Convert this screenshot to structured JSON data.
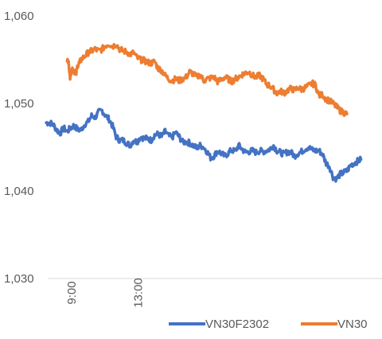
{
  "chart_data": {
    "type": "line",
    "title": "",
    "xlabel": "",
    "ylabel": "",
    "ylim": [
      1030,
      1060
    ],
    "yticks": [
      1030,
      1040,
      1050,
      1060
    ],
    "ytick_labels": [
      "1,030",
      "1,040",
      "1,050",
      "1,060"
    ],
    "xticks": [
      "9:00",
      "13:00"
    ],
    "grid": "horizontal gridline at baseline only",
    "legend_position": "bottom",
    "series": [
      {
        "name": "VN30F2302",
        "color": "#4472C4",
        "x_index_range": [
          0,
          1000
        ],
        "points": [
          [
            0,
            1047.8
          ],
          [
            10,
            1047.8
          ],
          [
            20,
            1047.6
          ],
          [
            30,
            1047.0
          ],
          [
            40,
            1046.6
          ],
          [
            50,
            1047.2
          ],
          [
            60,
            1046.8
          ],
          [
            70,
            1047.2
          ],
          [
            80,
            1047.5
          ],
          [
            90,
            1047.0
          ],
          [
            100,
            1047.0
          ],
          [
            110,
            1047.6
          ],
          [
            120,
            1047.9
          ],
          [
            130,
            1048.6
          ],
          [
            140,
            1048.4
          ],
          [
            150,
            1049.0
          ],
          [
            160,
            1049.2
          ],
          [
            170,
            1048.6
          ],
          [
            180,
            1048.2
          ],
          [
            190,
            1047.4
          ],
          [
            200,
            1046.2
          ],
          [
            210,
            1045.8
          ],
          [
            220,
            1045.8
          ],
          [
            230,
            1045.5
          ],
          [
            240,
            1045.2
          ],
          [
            250,
            1045.8
          ],
          [
            260,
            1045.6
          ],
          [
            270,
            1046.2
          ],
          [
            280,
            1046.0
          ],
          [
            290,
            1046.0
          ],
          [
            300,
            1045.8
          ],
          [
            310,
            1046.4
          ],
          [
            320,
            1046.5
          ],
          [
            330,
            1046.2
          ],
          [
            340,
            1046.8
          ],
          [
            350,
            1046.3
          ],
          [
            360,
            1046.1
          ],
          [
            370,
            1046.7
          ],
          [
            380,
            1046.2
          ],
          [
            390,
            1045.6
          ],
          [
            400,
            1045.6
          ],
          [
            410,
            1045.5
          ],
          [
            420,
            1045.2
          ],
          [
            430,
            1044.9
          ],
          [
            440,
            1045.2
          ],
          [
            450,
            1045.0
          ],
          [
            460,
            1044.5
          ],
          [
            470,
            1043.8
          ],
          [
            480,
            1044.0
          ],
          [
            490,
            1044.6
          ],
          [
            500,
            1044.3
          ],
          [
            510,
            1044.0
          ],
          [
            520,
            1044.3
          ],
          [
            530,
            1044.7
          ],
          [
            540,
            1044.5
          ],
          [
            550,
            1045.2
          ],
          [
            560,
            1044.8
          ],
          [
            570,
            1044.4
          ],
          [
            580,
            1044.5
          ],
          [
            590,
            1044.6
          ],
          [
            600,
            1044.4
          ],
          [
            610,
            1044.6
          ],
          [
            620,
            1044.5
          ],
          [
            630,
            1044.6
          ],
          [
            640,
            1044.8
          ],
          [
            650,
            1045.2
          ],
          [
            660,
            1044.6
          ],
          [
            670,
            1044.4
          ],
          [
            680,
            1044.2
          ],
          [
            690,
            1044.5
          ],
          [
            700,
            1044.4
          ],
          [
            710,
            1044.0
          ],
          [
            720,
            1044.3
          ],
          [
            730,
            1044.5
          ],
          [
            740,
            1044.8
          ],
          [
            750,
            1045.0
          ],
          [
            760,
            1044.7
          ],
          [
            770,
            1044.6
          ],
          [
            780,
            1044.6
          ],
          [
            790,
            1044.2
          ],
          [
            800,
            1043.2
          ],
          [
            810,
            1042.8
          ],
          [
            820,
            1041.6
          ],
          [
            830,
            1041.4
          ],
          [
            840,
            1041.9
          ],
          [
            850,
            1042.1
          ],
          [
            860,
            1042.3
          ],
          [
            870,
            1042.9
          ],
          [
            880,
            1043.2
          ],
          [
            890,
            1043.4
          ],
          [
            900,
            1043.6
          ]
        ]
      },
      {
        "name": "VN30",
        "color": "#ED7D31",
        "x_index_range": [
          0,
          1000
        ],
        "points": [
          [
            60,
            1055.0
          ],
          [
            65,
            1054.5
          ],
          [
            68,
            1053.0
          ],
          [
            70,
            1053.5
          ],
          [
            75,
            1054.0
          ],
          [
            80,
            1053.8
          ],
          [
            85,
            1053.2
          ],
          [
            90,
            1054.4
          ],
          [
            95,
            1054.6
          ],
          [
            100,
            1055.0
          ],
          [
            110,
            1055.4
          ],
          [
            120,
            1055.8
          ],
          [
            130,
            1056.0
          ],
          [
            140,
            1056.2
          ],
          [
            150,
            1056.0
          ],
          [
            160,
            1056.2
          ],
          [
            170,
            1056.6
          ],
          [
            180,
            1056.8
          ],
          [
            190,
            1056.5
          ],
          [
            200,
            1056.8
          ],
          [
            210,
            1056.2
          ],
          [
            220,
            1056.0
          ],
          [
            230,
            1055.9
          ],
          [
            240,
            1055.6
          ],
          [
            250,
            1055.8
          ],
          [
            260,
            1055.2
          ],
          [
            270,
            1055.0
          ],
          [
            280,
            1054.9
          ],
          [
            290,
            1054.7
          ],
          [
            300,
            1054.6
          ],
          [
            310,
            1054.8
          ],
          [
            320,
            1054.0
          ],
          [
            330,
            1053.8
          ],
          [
            340,
            1053.2
          ],
          [
            350,
            1052.8
          ],
          [
            360,
            1052.6
          ],
          [
            370,
            1052.8
          ],
          [
            380,
            1052.6
          ],
          [
            390,
            1052.8
          ],
          [
            400,
            1053.0
          ],
          [
            410,
            1053.6
          ],
          [
            420,
            1053.4
          ],
          [
            430,
            1053.0
          ],
          [
            440,
            1053.3
          ],
          [
            450,
            1052.6
          ],
          [
            460,
            1052.8
          ],
          [
            470,
            1052.9
          ],
          [
            480,
            1053.0
          ],
          [
            490,
            1052.5
          ],
          [
            500,
            1052.7
          ],
          [
            510,
            1053.0
          ],
          [
            520,
            1052.8
          ],
          [
            530,
            1052.5
          ],
          [
            540,
            1052.8
          ],
          [
            550,
            1053.0
          ],
          [
            560,
            1053.3
          ],
          [
            570,
            1053.5
          ],
          [
            580,
            1053.6
          ],
          [
            590,
            1053.2
          ],
          [
            600,
            1053.0
          ],
          [
            610,
            1053.2
          ],
          [
            620,
            1052.8
          ],
          [
            630,
            1052.2
          ],
          [
            640,
            1052.0
          ],
          [
            650,
            1051.6
          ],
          [
            660,
            1051.2
          ],
          [
            670,
            1051.4
          ],
          [
            680,
            1051.2
          ],
          [
            690,
            1051.5
          ],
          [
            700,
            1051.7
          ],
          [
            710,
            1051.5
          ],
          [
            720,
            1051.8
          ],
          [
            730,
            1051.6
          ],
          [
            740,
            1051.8
          ],
          [
            750,
            1052.0
          ],
          [
            760,
            1052.3
          ],
          [
            770,
            1052.1
          ],
          [
            780,
            1050.9
          ],
          [
            790,
            1051.0
          ],
          [
            800,
            1050.5
          ],
          [
            810,
            1050.3
          ],
          [
            820,
            1050.0
          ],
          [
            830,
            1049.6
          ],
          [
            840,
            1049.2
          ],
          [
            850,
            1049.0
          ],
          [
            860,
            1048.8
          ]
        ]
      }
    ]
  }
}
